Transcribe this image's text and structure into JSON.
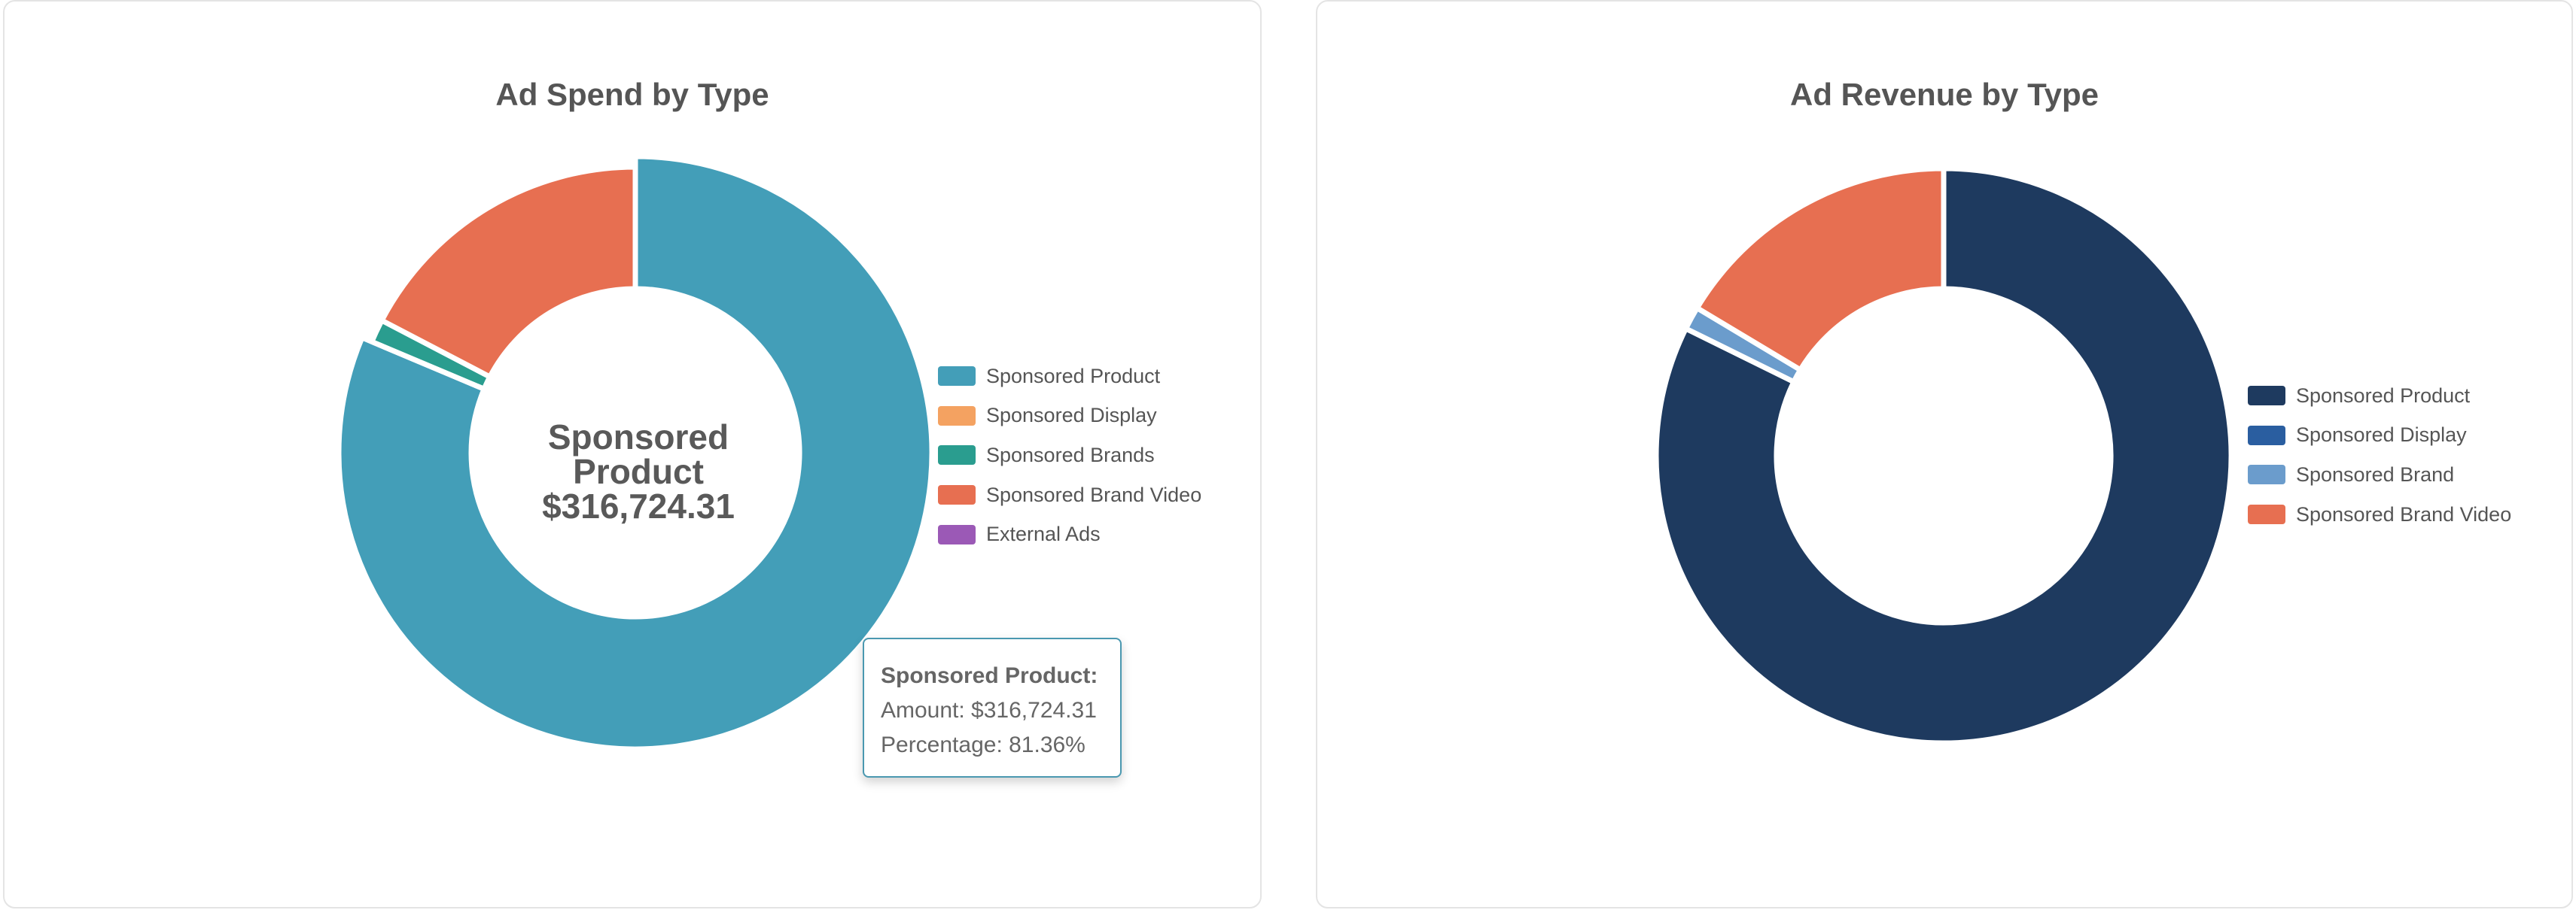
{
  "chart_data": [
    {
      "type": "pie",
      "title": "Ad Spend by Type",
      "currency": "$",
      "legend_position": "right",
      "slices": [
        {
          "label": "Sponsored Product",
          "value": 316724.31,
          "percentage": 81.36,
          "color": "#439eb8"
        },
        {
          "label": "Sponsored Display",
          "value": 0,
          "color": "#f4a261"
        },
        {
          "label": "Sponsored Brands",
          "value": 5100,
          "color": "#2a9d8f"
        },
        {
          "label": "Sponsored Brand Video",
          "value": 67500,
          "color": "#e76f51"
        },
        {
          "label": "External Ads",
          "value": 0,
          "color": "#9b59b6"
        }
      ],
      "center_label": {
        "name": "Sponsored Product",
        "value": "$316,724.31"
      },
      "tooltip": {
        "title": "Sponsored Product:",
        "amount_line": "Amount: $316,724.31",
        "percentage_line": "Percentage: 81.36%"
      }
    },
    {
      "type": "pie",
      "title": "Ad Revenue by Type",
      "legend_position": "right",
      "slices": [
        {
          "label": "Sponsored Product",
          "value": 82.3,
          "color": "#1e3a5f"
        },
        {
          "label": "Sponsored Display",
          "value": 0,
          "color": "#2a5ea0"
        },
        {
          "label": "Sponsored Brand",
          "value": 1.3,
          "color": "#6b9ccc"
        },
        {
          "label": "Sponsored Brand Video",
          "value": 16.4,
          "color": "#e76f51"
        }
      ]
    }
  ]
}
